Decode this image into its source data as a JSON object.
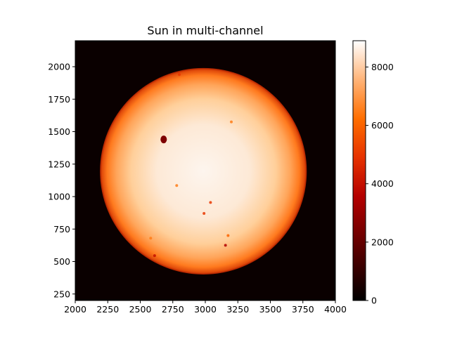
{
  "chart_data": {
    "type": "heatmap",
    "title": "Sun in multi-channel",
    "xlabel": "",
    "ylabel": "",
    "xlim": [
      2000,
      4000
    ],
    "ylim": [
      200,
      2200
    ],
    "xticks": [
      "2000",
      "2250",
      "2500",
      "2750",
      "3000",
      "3250",
      "3500",
      "3750",
      "4000"
    ],
    "yticks": [
      "250",
      "500",
      "750",
      "1000",
      "1250",
      "1500",
      "1750",
      "2000"
    ],
    "colormap": "gist_heat",
    "colorbar": {
      "vmin": 0,
      "vmax": 8900,
      "ticks": [
        "0",
        "2000",
        "4000",
        "6000",
        "8000"
      ]
    },
    "disk": {
      "center_x": 2985,
      "center_y": 1195,
      "radius": 795,
      "limb_value": 4200,
      "center_value": 8800,
      "background_value": 0
    },
    "sunspots": [
      {
        "x": 2680,
        "y": 1440,
        "value": 2500
      },
      {
        "x": 3040,
        "y": 955,
        "value": 5000
      },
      {
        "x": 2990,
        "y": 870,
        "value": 5000
      },
      {
        "x": 2780,
        "y": 1085,
        "value": 6500
      },
      {
        "x": 3155,
        "y": 625,
        "value": 3500
      },
      {
        "x": 3175,
        "y": 700,
        "value": 6000
      },
      {
        "x": 2610,
        "y": 545,
        "value": 4000
      },
      {
        "x": 3200,
        "y": 1575,
        "value": 6500
      },
      {
        "x": 2800,
        "y": 1940,
        "value": 5000
      },
      {
        "x": 2580,
        "y": 680,
        "value": 6500
      }
    ]
  }
}
